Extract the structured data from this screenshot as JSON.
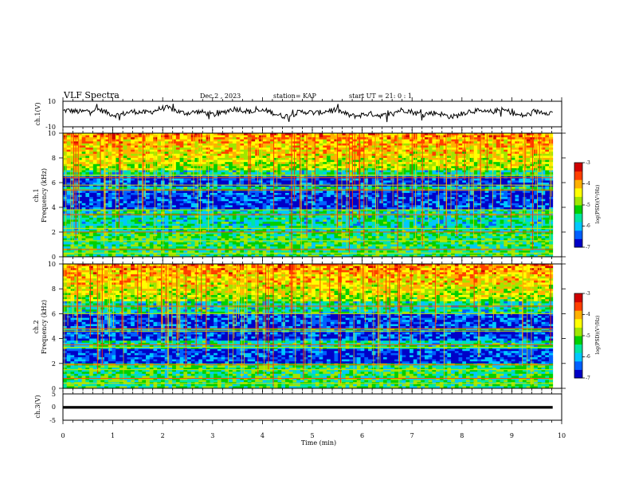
{
  "header": {
    "title": "VLF Spectra",
    "date": "Dec.2 , 2023",
    "station": "station= KAP",
    "start_time": "start UT =  21: 0  : 1"
  },
  "chart_data": [
    {
      "type": "line",
      "panel": "waveform-ch1",
      "ylabel": "ch.1(V)",
      "ylim": [
        -10,
        10
      ],
      "yticks": [
        "10",
        "-10"
      ],
      "xlim": [
        0,
        10
      ],
      "data_end": 9.82,
      "description_of_series": "noisy voltage trace oscillating roughly between -4 and 6 V"
    },
    {
      "type": "heatmap",
      "panel": "spectrogram-ch1",
      "ylabel": "ch.1\nFrequency (kHz)",
      "ylabel_lines": [
        "ch.1",
        "Frequency (kHz)"
      ],
      "ylim": [
        0,
        10
      ],
      "yticks": [
        "0",
        "2",
        "4",
        "6",
        "8",
        "10"
      ],
      "xlim": [
        0,
        10
      ],
      "data_end": 9.82,
      "low_power_bands_khz": [
        [
          3.9,
          5.3
        ],
        [
          5.6,
          6.5
        ]
      ],
      "narrow_lines_khz": [
        0.3,
        0.6,
        1.3,
        2.0,
        2.3,
        3.4,
        3.8,
        5.4,
        5.8,
        6.4,
        6.6
      ],
      "colorbar": {
        "label": "log(PSD)(V²/Hz)",
        "min": -7,
        "max": -3,
        "ticks": [
          "-3",
          "-4",
          "-5",
          "-6",
          "-7"
        ]
      }
    },
    {
      "type": "heatmap",
      "panel": "spectrogram-ch2",
      "ylabel": "ch.2\nFrequency (kHz)",
      "ylabel_lines": [
        "ch.2",
        "Frequency (kHz)"
      ],
      "ylim": [
        0,
        10
      ],
      "yticks": [
        "0",
        "2",
        "4",
        "6",
        "8",
        "10"
      ],
      "xlim": [
        0,
        10
      ],
      "data_end": 9.82,
      "low_power_bands_khz": [
        [
          3.8,
          4.6
        ],
        [
          4.8,
          6.0
        ],
        [
          2.0,
          3.1
        ]
      ],
      "narrow_lines_khz": [
        0.4,
        0.8,
        1.5,
        1.9,
        3.3,
        3.5,
        4.6,
        4.8,
        6.0,
        6.6
      ],
      "colorbar": {
        "label": "log(PSD)(V²/Hz)",
        "min": -7,
        "max": -3,
        "ticks": [
          "-3",
          "-4",
          "-5",
          "-6",
          "-7"
        ]
      }
    },
    {
      "type": "line",
      "panel": "waveform-ch3",
      "ylabel": "ch.3(V)",
      "ylim": [
        -5,
        5
      ],
      "yticks": [
        "5",
        "0",
        "-5"
      ],
      "xlim": [
        0,
        10
      ],
      "xlabel": "Time (min)",
      "xticks": [
        "0",
        "1",
        "2",
        "3",
        "4",
        "5",
        "6",
        "7",
        "8",
        "9",
        "10"
      ],
      "data_end": 9.82,
      "value_band": [
        -0.6,
        0.4
      ]
    }
  ],
  "colorbar_colors": [
    "#0000c8",
    "#0060ff",
    "#00c8ff",
    "#00e6a0",
    "#00d000",
    "#a0e600",
    "#ffff00",
    "#ffb000",
    "#ff4000",
    "#d00000",
    "#ffffff"
  ]
}
